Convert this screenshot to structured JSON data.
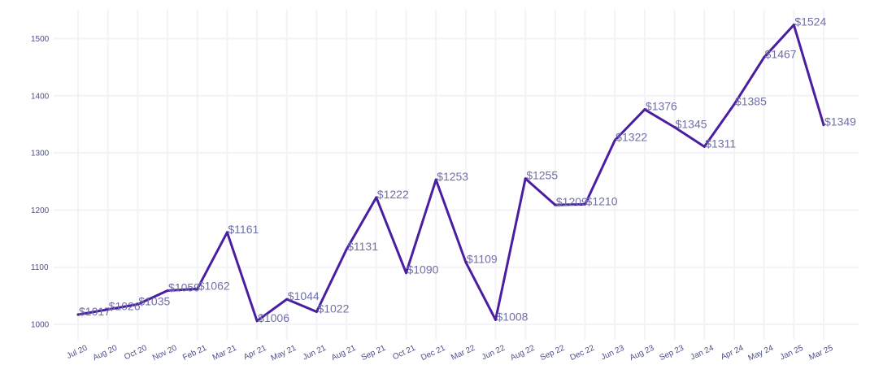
{
  "chart_data": {
    "type": "line",
    "title": "",
    "xlabel": "",
    "ylabel": "",
    "ylim": [
      970,
      1560
    ],
    "yticks": [
      1000,
      1100,
      1200,
      1300,
      1400,
      1500
    ],
    "ytick_labels": [
      "1000",
      "1100",
      "1200",
      "1300",
      "1400",
      "1500"
    ],
    "categories": [
      "Jul 20",
      "Aug 20",
      "Oct 20",
      "Nov 20",
      "Feb 21",
      "Mar 21",
      "Apr 21",
      "May 21",
      "Jun 21",
      "Aug 21",
      "Sep 21",
      "Oct 21",
      "Dec 21",
      "Mar 22",
      "Jun 22",
      "Aug 22",
      "Sep 22",
      "Dec 22",
      "Jun 23",
      "Aug 23",
      "Sep 23",
      "Jan 24",
      "Apr 24",
      "May 24",
      "Jan 25",
      "Mar 25"
    ],
    "values": [
      1017,
      1026,
      1035,
      1059,
      1062,
      1161,
      1006,
      1044,
      1022,
      1131,
      1222,
      1090,
      1253,
      1109,
      1008,
      1255,
      1209,
      1210,
      1322,
      1376,
      1345,
      1311,
      1385,
      1467,
      1524,
      1349
    ],
    "data_labels": [
      "$1017",
      "$1026",
      "$1035",
      "$1059",
      "$1062",
      "$1161",
      "$1006",
      "$1044",
      "$1022",
      "$1131",
      "$1222",
      "$1090",
      "$1253",
      "$1109",
      "$1008",
      "$1255",
      "$1209",
      "$1210",
      "$1322",
      "$1376",
      "$1345",
      "$1311",
      "$1385",
      "$1467",
      "$1524",
      "$1349"
    ],
    "grid": true,
    "line_color": "#4a1ea0",
    "label_color": "#6f6fa8",
    "tick_color": "#4b4f8a"
  }
}
